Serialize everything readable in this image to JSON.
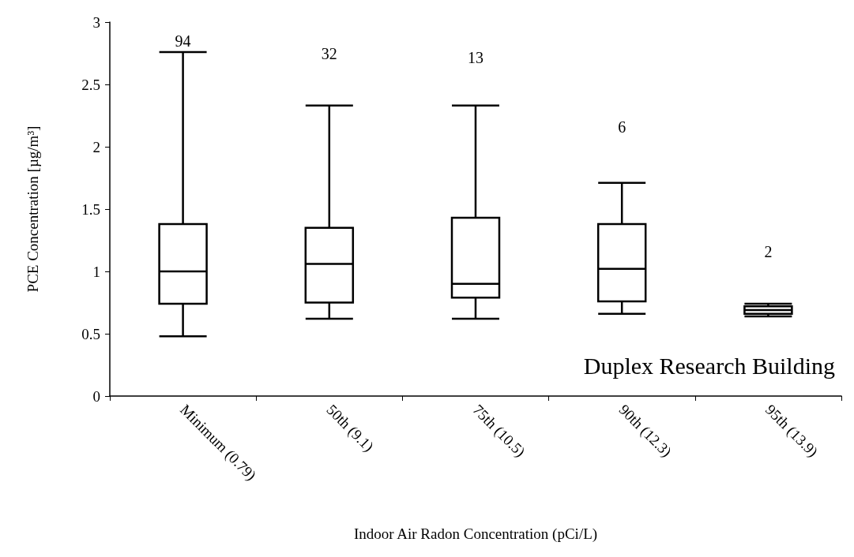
{
  "chart_data": {
    "type": "box",
    "xlabel": "Indoor Air Radon Concentration (pCi/L)",
    "ylabel": "PCE Concentration [µg/m³]",
    "categories": [
      "Minimum (0.79)",
      "50th (9.1)",
      "75th (10.5)",
      "90th (12.3)",
      "95th (13.9)"
    ],
    "boxes": [
      {
        "low": 0.48,
        "q1": 0.74,
        "median": 1.0,
        "q3": 1.38,
        "high": 2.76
      },
      {
        "low": 0.62,
        "q1": 0.75,
        "median": 1.06,
        "q3": 1.35,
        "high": 2.33
      },
      {
        "low": 0.62,
        "q1": 0.79,
        "median": 0.9,
        "q3": 1.43,
        "high": 2.33
      },
      {
        "low": 0.66,
        "q1": 0.76,
        "median": 1.02,
        "q3": 1.38,
        "high": 1.71
      },
      {
        "low": 0.64,
        "q1": 0.66,
        "median": 0.69,
        "q3": 0.72,
        "high": 0.74
      }
    ],
    "color": "#000000",
    "ylim": [
      0,
      3
    ],
    "yticks": [
      0,
      0.5,
      1,
      1.5,
      2,
      2.5,
      3
    ],
    "grid": false,
    "annotations": [
      "94",
      "32",
      "13",
      "6",
      "2",
      "Duplex Research Building"
    ]
  }
}
